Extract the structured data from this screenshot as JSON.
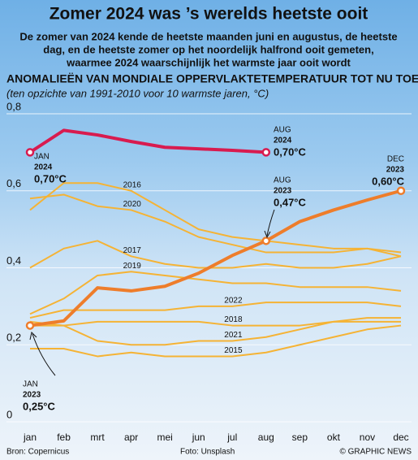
{
  "chart_data": {
    "type": "line",
    "title": "Zomer 2024 was ’s werelds heetste ooit",
    "subtitle": [
      "De zomer van 2024 kende de heetste maanden juni en augustus, de heetste",
      "dag, en de heetste zomer op het noordelijk halfrond ooit gemeten,",
      "waarmee 2024 waarschijnlijk het warmste jaar ooit wordt"
    ],
    "heading": "ANOMALIEËN VAN MONDIALE OPPERVLAKTETEMPERATUUR TOT NU TOE",
    "subheading": "(ten opzichte van 1991-2010 voor 10 warmste jaren, °C)",
    "categories": [
      "jan",
      "feb",
      "mrt",
      "apr",
      "mei",
      "jun",
      "jul",
      "aug",
      "sep",
      "okt",
      "nov",
      "dec"
    ],
    "ylim": [
      0,
      0.8
    ],
    "yticks": [
      {
        "value": 0,
        "label": "0"
      },
      {
        "value": 0.2,
        "label": "0,2"
      },
      {
        "value": 0.4,
        "label": "0,4"
      },
      {
        "value": 0.6,
        "label": "0,6"
      },
      {
        "value": 0.8,
        "label": "0,8"
      }
    ],
    "grid": true,
    "series": [
      {
        "name": "2016",
        "color": "#f5b335",
        "values": [
          0.55,
          0.62,
          0.62,
          0.6,
          0.55,
          0.5,
          0.48,
          0.47,
          0.46,
          0.45,
          0.45,
          0.44
        ]
      },
      {
        "name": "2020",
        "color": "#f5b335",
        "values": [
          0.58,
          0.59,
          0.56,
          0.55,
          0.52,
          0.48,
          0.46,
          0.44,
          0.44,
          0.44,
          0.45,
          0.43
        ]
      },
      {
        "name": "2017",
        "color": "#f5b335",
        "values": [
          0.4,
          0.45,
          0.47,
          0.43,
          0.41,
          0.4,
          0.4,
          0.41,
          0.4,
          0.4,
          0.41,
          0.43
        ]
      },
      {
        "name": "2019",
        "color": "#f5b335",
        "values": [
          0.28,
          0.32,
          0.38,
          0.39,
          0.38,
          0.37,
          0.36,
          0.36,
          0.35,
          0.35,
          0.35,
          0.34
        ]
      },
      {
        "name": "2022",
        "color": "#f5b335",
        "values": [
          0.27,
          0.29,
          0.29,
          0.29,
          0.29,
          0.3,
          0.3,
          0.31,
          0.31,
          0.31,
          0.31,
          0.3
        ]
      },
      {
        "name": "2018",
        "color": "#f5b335",
        "values": [
          0.25,
          0.25,
          0.26,
          0.26,
          0.26,
          0.26,
          0.25,
          0.25,
          0.25,
          0.26,
          0.27,
          0.27
        ]
      },
      {
        "name": "2021",
        "color": "#f5b335",
        "values": [
          0.26,
          0.25,
          0.21,
          0.2,
          0.2,
          0.21,
          0.21,
          0.22,
          0.24,
          0.26,
          0.26,
          0.26
        ]
      },
      {
        "name": "2015",
        "color": "#f5b335",
        "values": [
          0.19,
          0.19,
          0.17,
          0.18,
          0.17,
          0.17,
          0.17,
          0.18,
          0.2,
          0.22,
          0.24,
          0.25
        ]
      },
      {
        "name": "2023",
        "color": "#ee7d2b",
        "values": [
          0.25,
          0.262,
          0.348,
          0.34,
          0.352,
          0.386,
          0.432,
          0.47,
          0.52,
          0.55,
          0.576,
          0.6
        ]
      },
      {
        "name": "2024",
        "color": "#d81b4f",
        "values": [
          0.7,
          0.757,
          0.745,
          0.728,
          0.713,
          0.709,
          0.705,
          0.7,
          null,
          null,
          null,
          null
        ]
      }
    ],
    "annotations": [
      {
        "lines": [
          "JAN",
          "2024",
          "0,70°C"
        ]
      },
      {
        "lines": [
          "AUG",
          "2024",
          "0,70°C"
        ]
      },
      {
        "lines": [
          "AUG",
          "2023",
          "0,47°C"
        ]
      },
      {
        "lines": [
          "DEC",
          "2023",
          "0,60°C"
        ]
      },
      {
        "lines": [
          "JAN",
          "2023",
          "0,25°C"
        ]
      }
    ],
    "footer": {
      "source": "Bron: Copernicus",
      "photo": "Foto: Unsplash",
      "credit": "© GRAPHIC NEWS"
    }
  }
}
